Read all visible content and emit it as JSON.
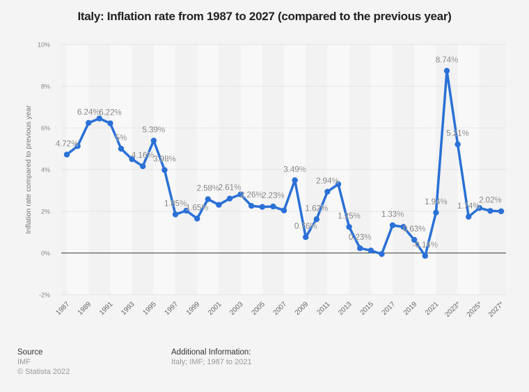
{
  "chart_data": {
    "type": "line",
    "title": "Italy: Inflation rate from 1987 to 2027 (compared to the previous year)",
    "xlabel": "",
    "ylabel": "Inflation rate compared to previous year",
    "ylim": [
      -2,
      10
    ],
    "yticks": [
      "10%",
      "8%",
      "6%",
      "4%",
      "2%",
      "0%",
      "-2%"
    ],
    "ytick_values": [
      10,
      8,
      6,
      4,
      2,
      0,
      -2
    ],
    "grid": true,
    "x": [
      1987,
      1988,
      1989,
      1990,
      1991,
      1992,
      1993,
      1994,
      1995,
      1996,
      1997,
      1998,
      1999,
      2000,
      2001,
      2002,
      2003,
      2004,
      2005,
      2006,
      2007,
      2008,
      2009,
      2010,
      2011,
      2012,
      2013,
      2014,
      2015,
      2016,
      2017,
      2018,
      2019,
      2020,
      2021,
      2022,
      2023,
      2024,
      2025,
      2026,
      2027
    ],
    "xtick_labels": [
      "1987",
      "1989",
      "1991",
      "1993",
      "1995",
      "1997",
      "1999",
      "2001",
      "2003",
      "2005",
      "2007",
      "2009",
      "2011",
      "2013",
      "2015",
      "2017",
      "2019",
      "2021",
      "2023*",
      "2025*",
      "2027*"
    ],
    "xtick_years": [
      1987,
      1989,
      1991,
      1993,
      1995,
      1997,
      1999,
      2001,
      2003,
      2005,
      2007,
      2009,
      2011,
      2013,
      2015,
      2017,
      2019,
      2021,
      2023,
      2025,
      2027
    ],
    "series": [
      {
        "name": "Inflation rate",
        "color": "#2a70d6",
        "values": [
          4.72,
          5.13,
          6.24,
          6.45,
          6.22,
          5.0,
          4.5,
          4.16,
          5.39,
          3.98,
          1.85,
          2.03,
          1.65,
          2.58,
          2.31,
          2.61,
          2.81,
          2.26,
          2.21,
          2.23,
          2.04,
          3.49,
          0.76,
          1.62,
          2.94,
          3.3,
          1.25,
          0.23,
          0.12,
          -0.05,
          1.33,
          1.25,
          0.63,
          -0.14,
          1.94,
          8.74,
          5.21,
          1.74,
          2.16,
          2.02,
          2.0
        ]
      }
    ],
    "data_labels": [
      {
        "year": 1987,
        "text": "4.72%"
      },
      {
        "year": 1989,
        "text": "6.24%"
      },
      {
        "year": 1991,
        "text": "6.22%"
      },
      {
        "year": 1992,
        "text": "5%"
      },
      {
        "year": 1994,
        "text": "4.16%"
      },
      {
        "year": 1995,
        "text": "5.39%"
      },
      {
        "year": 1996,
        "text": "3.98%"
      },
      {
        "year": 1997,
        "text": "1.85%"
      },
      {
        "year": 1999,
        "text": "1.65%"
      },
      {
        "year": 2000,
        "text": "2.58%"
      },
      {
        "year": 2002,
        "text": "2.61%"
      },
      {
        "year": 2004,
        "text": "2.26%"
      },
      {
        "year": 2006,
        "text": "2.23%"
      },
      {
        "year": 2008,
        "text": "3.49%"
      },
      {
        "year": 2009,
        "text": "0.76%"
      },
      {
        "year": 2010,
        "text": "1.62%"
      },
      {
        "year": 2011,
        "text": "2.94%"
      },
      {
        "year": 2013,
        "text": "1.25%"
      },
      {
        "year": 2014,
        "text": "0.23%"
      },
      {
        "year": 2017,
        "text": "1.33%"
      },
      {
        "year": 2019,
        "text": "0.63%"
      },
      {
        "year": 2020,
        "text": "-0.14%"
      },
      {
        "year": 2021,
        "text": "1.94%"
      },
      {
        "year": 2022,
        "text": "8.74%"
      },
      {
        "year": 2023,
        "text": "5.21%"
      },
      {
        "year": 2024,
        "text": "1.74%"
      },
      {
        "year": 2026,
        "text": "2.02%"
      }
    ]
  },
  "footer": {
    "source_heading": "Source",
    "source": "IMF",
    "copyright": "© Statista 2022",
    "additional_heading": "Additional Information:",
    "additional": "Italy; IMF; 1987 to 2021"
  }
}
